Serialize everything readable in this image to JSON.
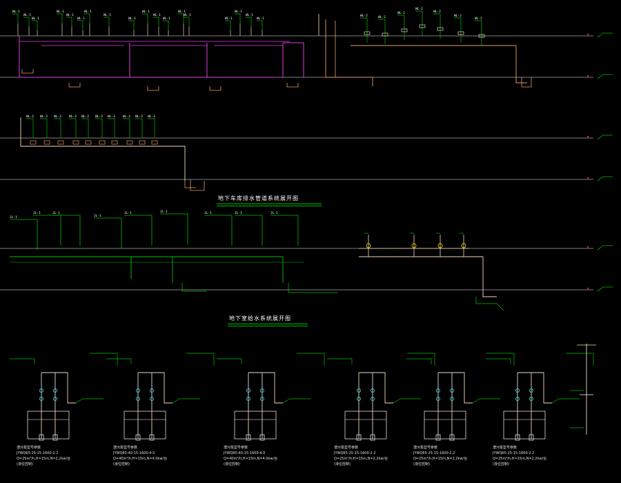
{
  "section_titles": {
    "drainage_system": "地下车库排水管道系统展开图",
    "water_supply_system": "地下室给水系统展开图"
  },
  "pump_labels": {
    "line1": "潜污泵型号参数",
    "line2": "JYWQ65-25-15-1600-2.2",
    "line3": "Q=25m³/h,H=15m,N=2.2kw/台",
    "line4": "(液位控制)"
  },
  "pump_groups": [
    {
      "model": "JYWQ65-25-15-1600-2.2",
      "spec": "Q=25m³/h,H=15m,N=2.2kw/台"
    },
    {
      "model": "JYWQ80-40-15-1600-4.0",
      "spec": "Q=40m³/h,H=15m,N=4.0kw/台"
    },
    {
      "model": "JYWQ80-40-15-1600-4.0",
      "spec": "Q=40m³/h,H=15m,N=4.0kw/台"
    },
    {
      "model": "JYWQ65-25-15-1600-2.2",
      "spec": "Q=25m³/h,H=15m,N=2.2kw/台"
    },
    {
      "model": "JYWQ65-25-15-1600-2.2",
      "spec": "Q=25m³/h,H=15m,N=2.2kw/台"
    },
    {
      "model": "JYWQ65-25-15-1600-2.2",
      "spec": "Q=25m³/h,H=15m,N=2.2kw/台"
    }
  ],
  "colors": {
    "background": "#000000",
    "floor_line": "#ffffff",
    "leader": "#00c000",
    "drain_pipe": "#e040e0",
    "pipe_orange": "#e8a060",
    "pipe_cream": "#f0dcc0",
    "valve_yellow": "#e0c000",
    "valve_cyan": "#40d0e0",
    "marker_red": "#ff2020"
  }
}
